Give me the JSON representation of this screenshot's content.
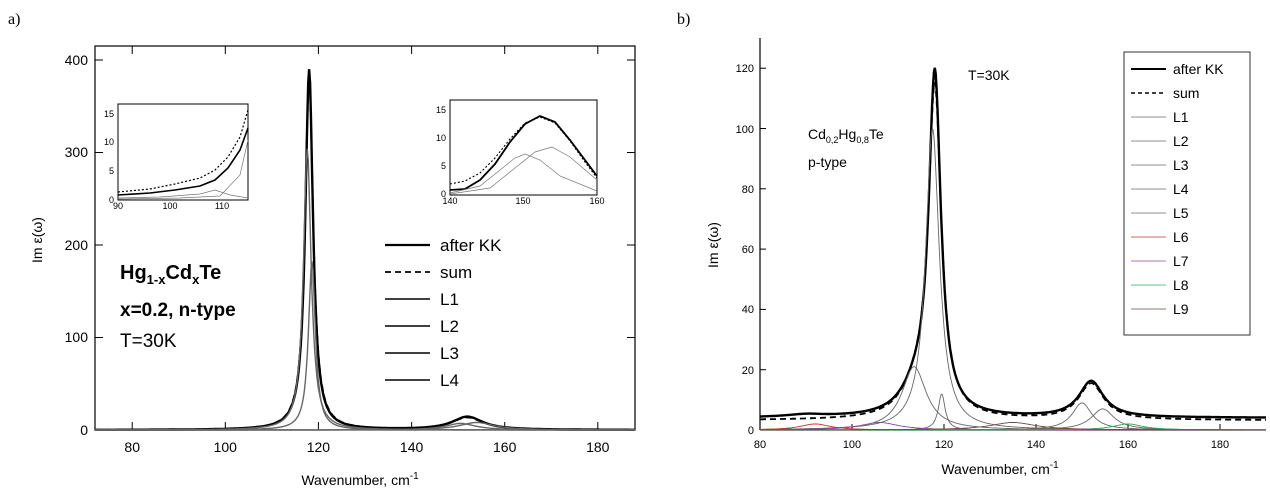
{
  "panel_a": {
    "panel_label": "a)",
    "ylabel": "Im ε(ω)",
    "xlabel": "Wavenumber, cm",
    "xlabel_sup": "-1",
    "xticks": [
      "80",
      "100",
      "120",
      "140",
      "160",
      "180"
    ],
    "yticks": [
      "0",
      "100",
      "200",
      "300",
      "400"
    ],
    "annotation": {
      "line1_pre": "Hg",
      "line1_sub1": "1-x",
      "line1_mid": "Cd",
      "line1_sub2": "x",
      "line1_post": "Te",
      "line2": "x=0.2, n-type",
      "line3": "T=30K"
    },
    "legend": [
      "after KK",
      "sum",
      "L1",
      "L2",
      "L3",
      "L4"
    ],
    "inset_left": {
      "xticks": [
        "90",
        "100",
        "110"
      ],
      "yticks": [
        "0",
        "5",
        "10",
        "15"
      ]
    },
    "inset_right": {
      "xticks": [
        "140",
        "150",
        "160"
      ],
      "yticks": [
        "0",
        "5",
        "10",
        "15"
      ]
    }
  },
  "panel_b": {
    "panel_label": "b)",
    "ylabel": "Im ε(ω)",
    "xlabel": "Wavenumber, cm",
    "xlabel_sup": "-1",
    "xticks": [
      "80",
      "100",
      "120",
      "140",
      "160",
      "180"
    ],
    "yticks": [
      "0",
      "20",
      "40",
      "60",
      "80",
      "100",
      "120"
    ],
    "annotation": {
      "temp": "T=30K",
      "c_pre": "Cd",
      "c_sub1": "0,2",
      "c_mid": "Hg",
      "c_sub2": "0,8",
      "c_post": "Te",
      "type": "p-type"
    },
    "legend": [
      "after KK",
      "sum",
      "L1",
      "L2",
      "L3",
      "L4",
      "L5",
      "L6",
      "L7",
      "L8",
      "L9"
    ]
  },
  "chart_data": [
    {
      "type": "line",
      "title": "",
      "xlabel": "Wavenumber, cm-1",
      "ylabel": "Im ε(ω)",
      "xlim": [
        72,
        188
      ],
      "ylim": [
        0,
        410
      ],
      "series": [
        {
          "name": "after KK",
          "style": "solid-thick",
          "peaks": [
            {
              "x0": 118,
              "amp": 385,
              "w": 1.0
            },
            {
              "x0": 152,
              "amp": 14,
              "w": 4.0
            }
          ]
        },
        {
          "name": "sum",
          "style": "dashed",
          "peaks": [
            {
              "x0": 118,
              "amp": 375,
              "w": 1.05
            },
            {
              "x0": 152,
              "amp": 13,
              "w": 4.2
            }
          ]
        },
        {
          "name": "L1",
          "style": "thin",
          "peaks": [
            {
              "x0": 117.6,
              "amp": 300,
              "w": 1.0
            }
          ]
        },
        {
          "name": "L2",
          "style": "thin",
          "peaks": [
            {
              "x0": 118.6,
              "amp": 180,
              "w": 0.9
            }
          ]
        },
        {
          "name": "L3",
          "style": "thin",
          "peaks": [
            {
              "x0": 150.5,
              "amp": 7,
              "w": 4.0
            }
          ]
        },
        {
          "name": "L4",
          "style": "thin",
          "peaks": [
            {
              "x0": 154,
              "amp": 8,
              "w": 4.5
            }
          ]
        }
      ],
      "insets": [
        {
          "xlim": [
            90,
            115
          ],
          "ylim": [
            0,
            16.5
          ],
          "series_desc": "low-frequency rise near 90-115 cm-1 (after KK, sum, components)"
        },
        {
          "xlim": [
            140,
            160
          ],
          "ylim": [
            0,
            16.5
          ],
          "series_desc": "peak near 152 cm-1 with max ~14.5 (after KK), components ~7.5 and ~9"
        }
      ]
    },
    {
      "type": "line",
      "title": "",
      "xlabel": "Wavenumber, cm-1",
      "ylabel": "Im ε(ω)",
      "xlim": [
        80,
        190
      ],
      "ylim": [
        0,
        130
      ],
      "series": [
        {
          "name": "after KK",
          "style": "solid-thick",
          "peaks": [
            {
              "x0": 118,
              "amp": 112,
              "w": 1.6
            },
            {
              "x0": 114,
              "amp": 8,
              "w": 4
            },
            {
              "x0": 152,
              "amp": 12,
              "w": 3.2
            },
            {
              "x0": 90,
              "amp": 0.8,
              "w": 5
            }
          ],
          "baseline": 4
        },
        {
          "name": "sum",
          "style": "dashed",
          "peaks": [
            {
              "x0": 118,
              "amp": 108,
              "w": 1.7
            },
            {
              "x0": 114,
              "amp": 8,
              "w": 4
            },
            {
              "x0": 152,
              "amp": 12,
              "w": 3.3
            }
          ],
          "baseline": 3.2
        },
        {
          "name": "L1",
          "style": "thin",
          "peaks": [
            {
              "x0": 117.5,
              "amp": 100,
              "w": 1.8
            }
          ]
        },
        {
          "name": "L2",
          "style": "thin",
          "peaks": [
            {
              "x0": 113.5,
              "amp": 21,
              "w": 3.2
            }
          ]
        },
        {
          "name": "L3",
          "style": "thin",
          "peaks": [
            {
              "x0": 119.5,
              "amp": 12,
              "w": 0.9
            }
          ]
        },
        {
          "name": "L4",
          "style": "thin",
          "peaks": [
            {
              "x0": 150,
              "amp": 9,
              "w": 2.6
            }
          ]
        },
        {
          "name": "L5",
          "style": "thin",
          "peaks": [
            {
              "x0": 154.5,
              "amp": 7,
              "w": 3
            }
          ]
        },
        {
          "name": "L6",
          "style": "thin",
          "peaks": [
            {
              "x0": 92,
              "amp": 2,
              "w": 4
            }
          ]
        },
        {
          "name": "L7",
          "style": "thin",
          "peaks": [
            {
              "x0": 106,
              "amp": 2.5,
              "w": 5
            }
          ]
        },
        {
          "name": "L8",
          "style": "thin",
          "peaks": [
            {
              "x0": 160,
              "amp": 2,
              "w": 4
            }
          ]
        },
        {
          "name": "L9",
          "style": "thin",
          "peaks": [
            {
              "x0": 135,
              "amp": 2.5,
              "w": 6
            }
          ]
        }
      ]
    }
  ],
  "colors": {
    "L6": "#c0392b",
    "L7": "#8e44ad",
    "L8": "#27ae60",
    "L9": "#6d4c41",
    "thin": "#666666"
  }
}
